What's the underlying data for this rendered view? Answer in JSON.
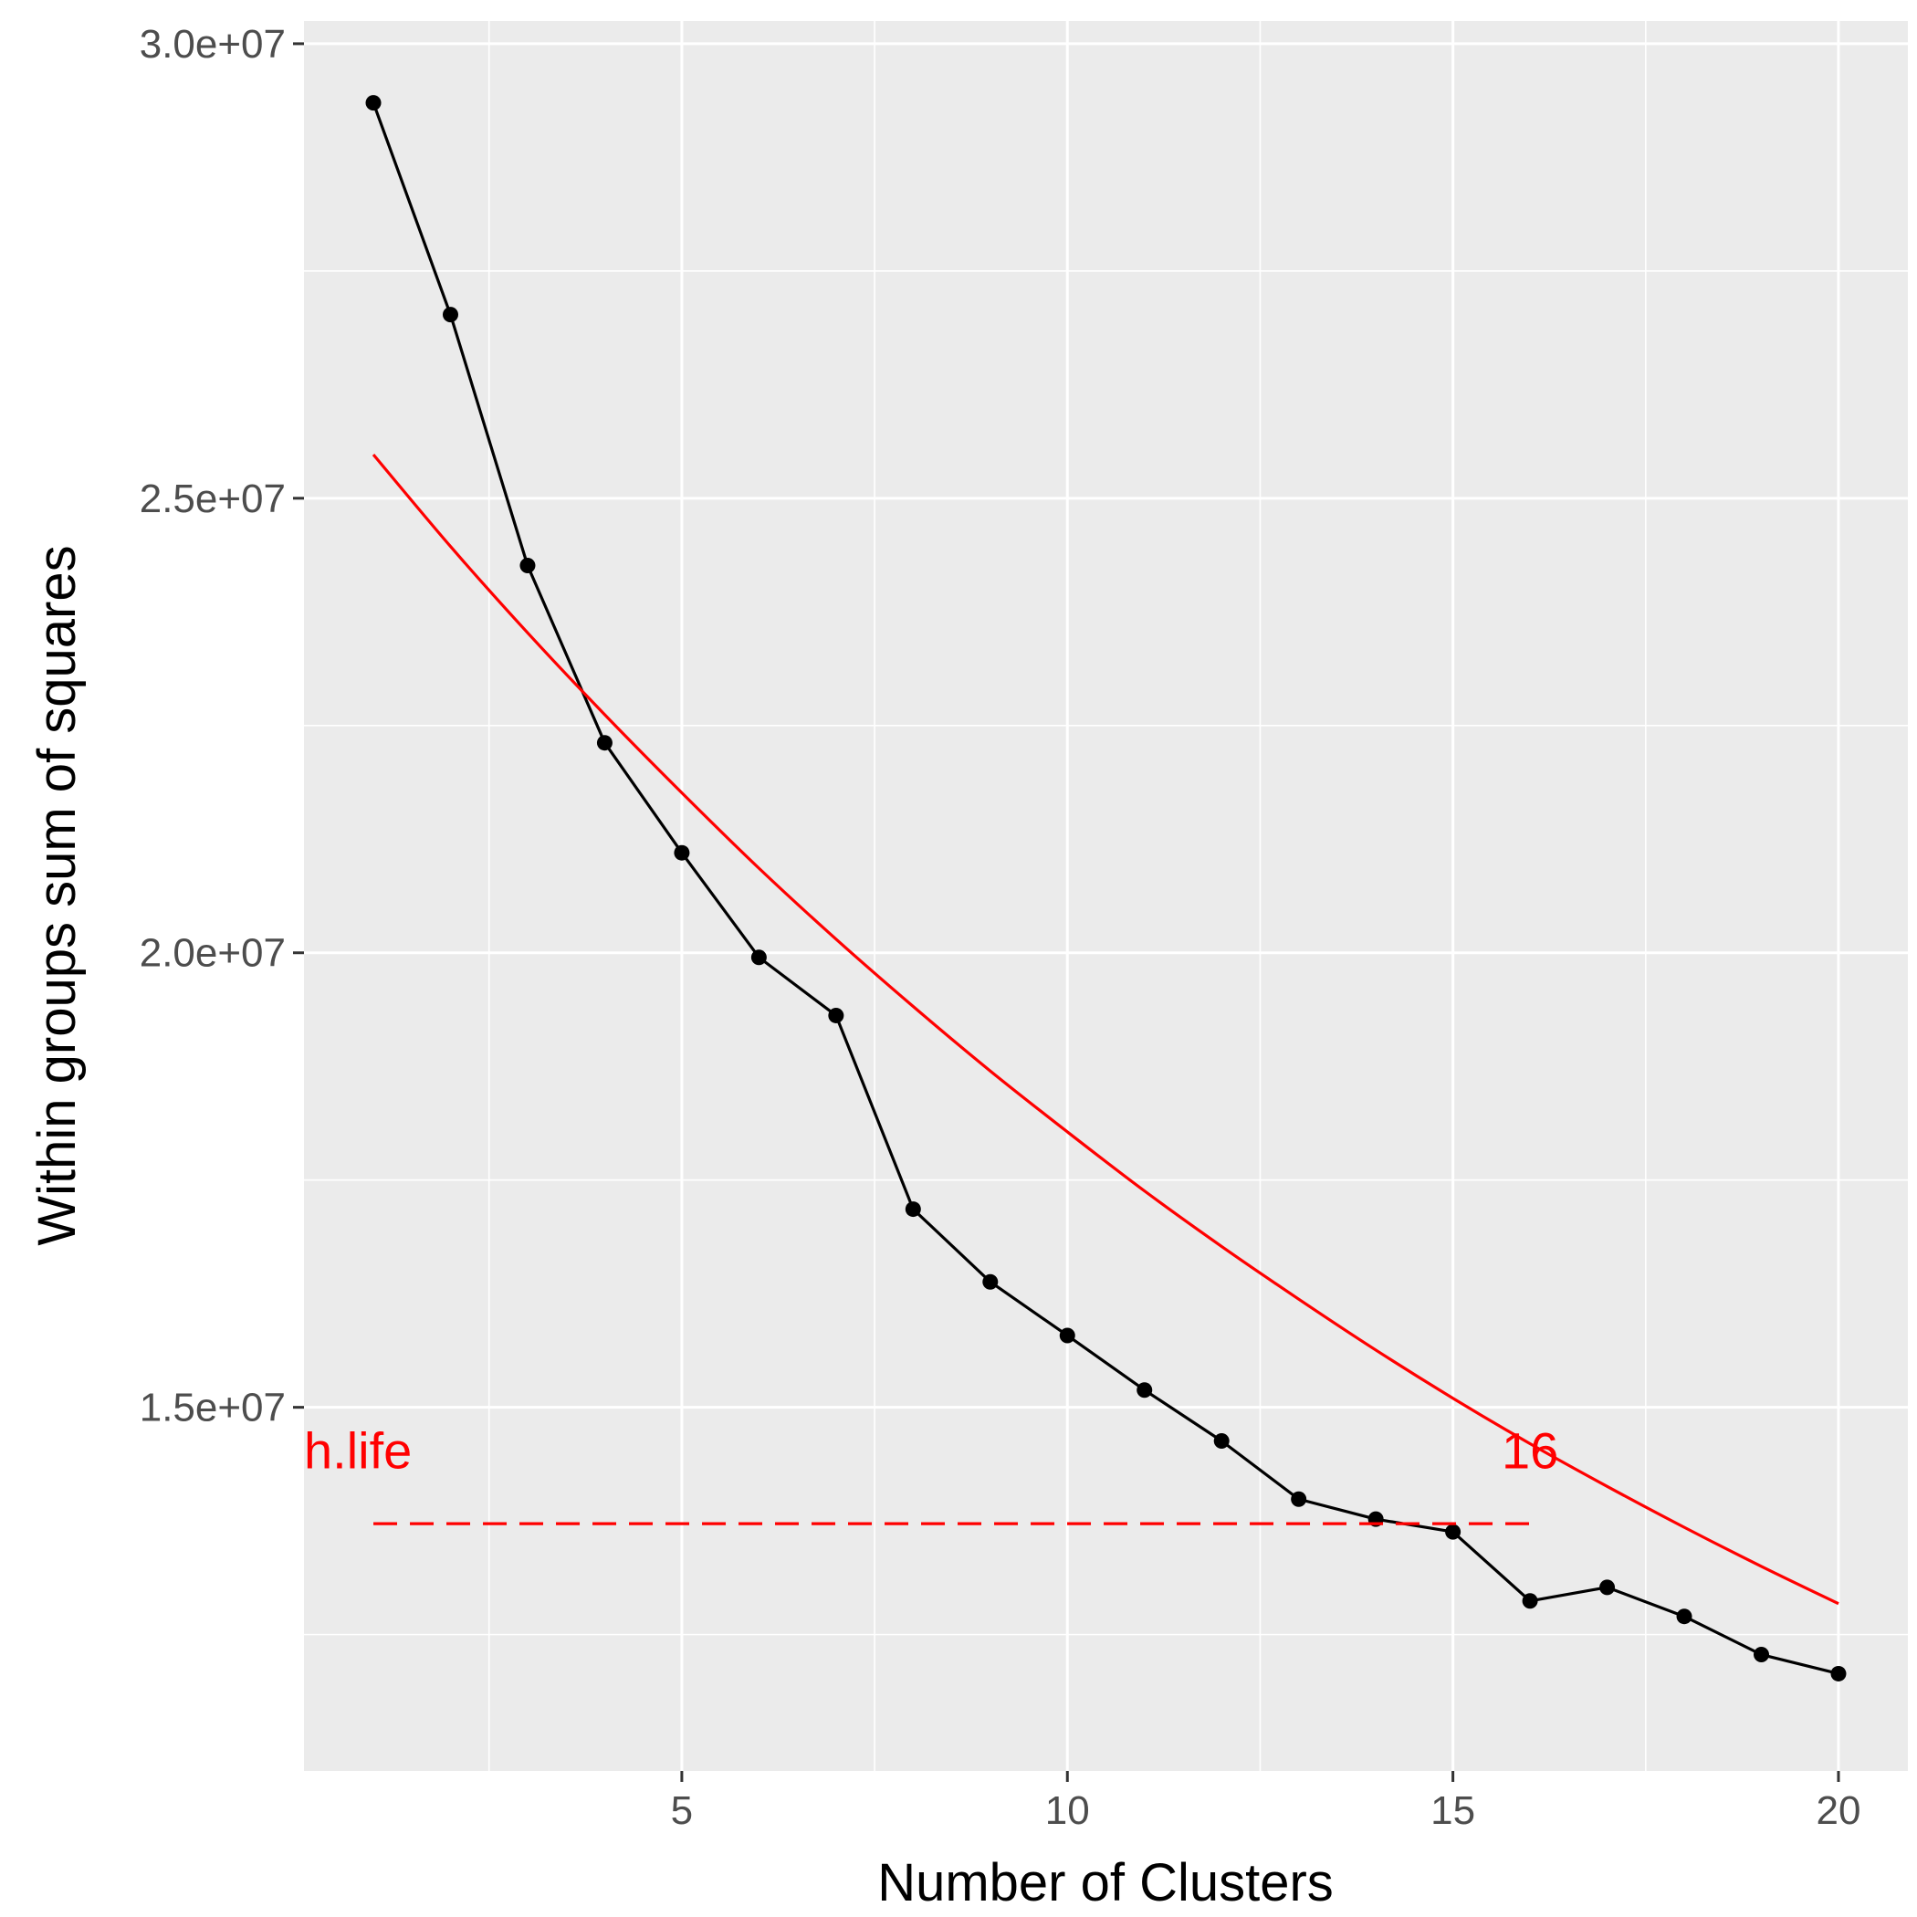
{
  "chart_data": {
    "type": "line",
    "title": "",
    "xlabel": "Number of Clusters",
    "ylabel": "Within groups sum of squares",
    "xlim": [
      0.1,
      20.9
    ],
    "ylim": [
      11000000,
      30250000
    ],
    "x_ticks": [
      5,
      10,
      15,
      20
    ],
    "x_tick_labels": [
      "5",
      "10",
      "15",
      "20"
    ],
    "y_ticks": [
      15000000,
      20000000,
      25000000,
      30000000
    ],
    "y_tick_labels": [
      "1.5e+07",
      "2.0e+07",
      "2.5e+07",
      "3.0e+07"
    ],
    "grid": true,
    "background": "#ebebeb",
    "series": [
      {
        "x": [
          1,
          2,
          3,
          4,
          5,
          6,
          7,
          8,
          9,
          10,
          11,
          12,
          13,
          14,
          15,
          16,
          17,
          18,
          19,
          20
        ],
        "y": [
          29350000,
          27020000,
          24260000,
          22310000,
          21100000,
          19950000,
          19310000,
          17180000,
          16380000,
          15790000,
          15190000,
          14630000,
          13990000,
          13770000,
          13630000,
          12870000,
          13020000,
          12700000,
          12280000,
          12070000
        ],
        "color": "#000000",
        "markers": true
      },
      {
        "x": [
          1,
          2,
          3,
          4,
          5,
          6,
          7,
          8,
          9,
          10,
          11,
          12,
          13,
          14,
          15,
          16,
          17,
          18,
          19,
          20
        ],
        "y": [
          25480000,
          24470000,
          23520000,
          22620000,
          21760000,
          20930000,
          20150000,
          19410000,
          18700000,
          18030000,
          17380000,
          16770000,
          16190000,
          15630000,
          15100000,
          14600000,
          14130000,
          13680000,
          13250000,
          12840000
        ],
        "color": "#ff0000",
        "markers": false,
        "smooth": true
      }
    ],
    "reference_line": {
      "y": 13720000,
      "x_start": 1,
      "x_end": 16,
      "color": "#ff0000",
      "style": "dashed"
    },
    "annotations": [
      {
        "text": "h.life",
        "x": 0.1,
        "y": 14330000,
        "color": "#ff0000",
        "anchor": "start"
      },
      {
        "text": "16",
        "x": 16,
        "y": 14330000,
        "color": "#ff0000",
        "anchor": "middle"
      }
    ]
  }
}
